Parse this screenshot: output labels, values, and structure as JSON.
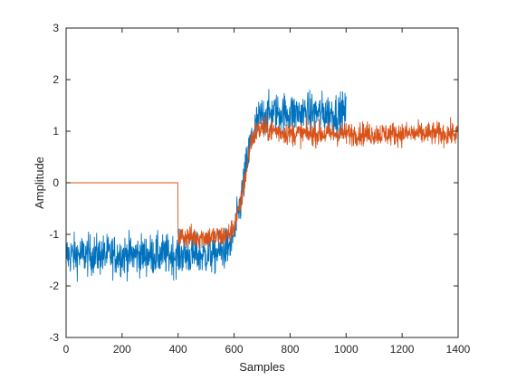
{
  "chart_data": {
    "type": "line",
    "title": "",
    "xlabel": "Samples",
    "ylabel": "Amplitude",
    "xlim": [
      0,
      1400
    ],
    "ylim": [
      -3,
      3
    ],
    "xticks": [
      0,
      200,
      400,
      600,
      800,
      1000,
      1200,
      1400
    ],
    "yticks": [
      -3,
      -2,
      -1,
      0,
      1,
      2,
      3
    ],
    "xtick_labels": [
      "0",
      "200",
      "400",
      "600",
      "800",
      "1000",
      "1200",
      "1400"
    ],
    "ytick_labels": [
      "-3",
      "-2",
      "-1",
      "0",
      "1",
      "2",
      "3"
    ],
    "grid": false,
    "box": true,
    "series": [
      {
        "color": "#0072BD",
        "x": [
          0,
          100,
          200,
          300,
          400,
          450,
          500,
          550,
          580,
          600,
          620,
          640,
          660,
          680,
          700,
          750,
          800,
          850,
          900,
          950,
          1000
        ],
        "y": [
          -1.4,
          -1.4,
          -1.4,
          -1.4,
          -1.4,
          -1.4,
          -1.4,
          -1.35,
          -1.25,
          -1.0,
          -0.5,
          0.2,
          0.8,
          1.15,
          1.3,
          1.35,
          1.35,
          1.35,
          1.35,
          1.35,
          1.35
        ],
        "noise": 0.35
      },
      {
        "color": "#D95319",
        "x": [
          0,
          399,
          400,
          450,
          500,
          550,
          580,
          600,
          620,
          640,
          660,
          680,
          700,
          750,
          800,
          900,
          1000,
          1100,
          1200,
          1300,
          1400
        ],
        "y": [
          0,
          0,
          -1.05,
          -1.05,
          -1.05,
          -1.05,
          -1.0,
          -0.85,
          -0.5,
          0.1,
          0.8,
          1.0,
          1.05,
          1.0,
          0.95,
          0.95,
          0.95,
          0.95,
          0.95,
          0.95,
          0.95
        ],
        "noise_start": 400,
        "noise": 0.2
      }
    ]
  }
}
